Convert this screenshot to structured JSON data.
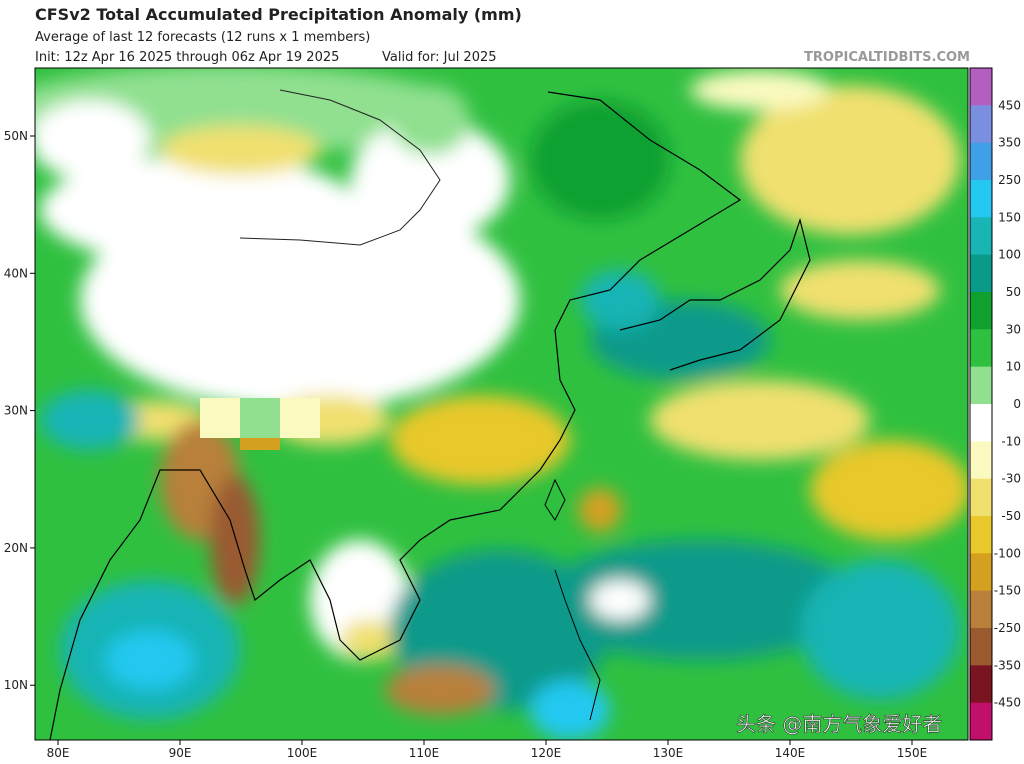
{
  "header": {
    "title": "CFSv2 Total Accumulated Precipitation Anomaly (mm)",
    "subtitle": "Average of last 12 forecasts (12 runs x 1 members)",
    "init": "Init: 12z Apr 16 2025 through 06z Apr 19 2025",
    "valid": "Valid for: Jul 2025",
    "source": "TROPICALTIDBITS.COM"
  },
  "map": {
    "lat_labels": [
      "50N",
      "40N",
      "30N",
      "20N",
      "10N"
    ],
    "lon_labels": [
      "80E",
      "90E",
      "100E",
      "110E",
      "120E",
      "130E",
      "140E",
      "150E"
    ]
  },
  "colorbar": {
    "labels": [
      450,
      350,
      250,
      150,
      100,
      50,
      30,
      10,
      0,
      -10,
      -30,
      -50,
      -100,
      -150,
      -250,
      -350,
      -450
    ],
    "colors": [
      "#b35fbf",
      "#7b8fe0",
      "#3fa0e8",
      "#22c8f0",
      "#19b4b4",
      "#0a9a8a",
      "#10a030",
      "#30c040",
      "#90e090",
      "#ffffff",
      "#fafac0",
      "#f0e070",
      "#e8c82a",
      "#d4a020",
      "#b8803a",
      "#9a5a30",
      "#7a1420",
      "#c0106a"
    ]
  },
  "watermark": "头条 @南方气象爱好者"
}
